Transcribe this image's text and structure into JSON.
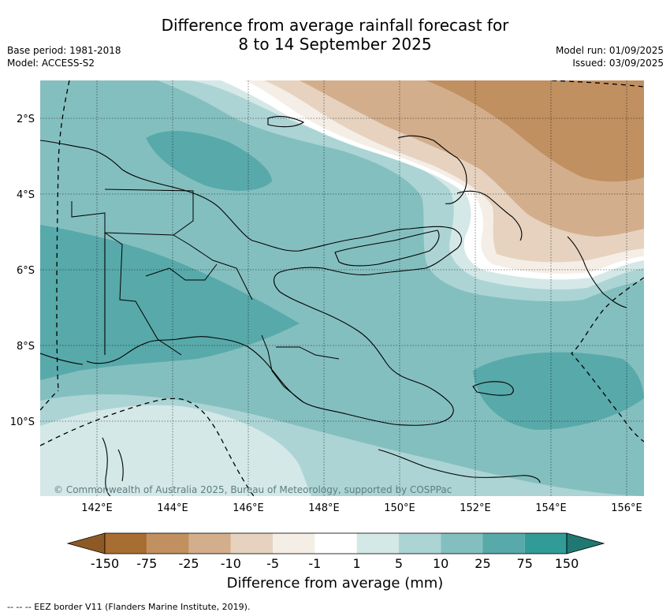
{
  "title_line1": "Difference from average rainfall forecast for",
  "title_line2": "8 to 14 September 2025",
  "base_period": "Base period: 1981-2018",
  "model": "Model: ACCESS-S2",
  "model_run": "Model run: 01/09/2025",
  "issued": "Issued: 03/09/2025",
  "latitude_labels": [
    "2°S",
    "4°S",
    "6°S",
    "8°S",
    "10°S"
  ],
  "longitude_labels": [
    "142°E",
    "144°E",
    "146°E",
    "148°E",
    "150°E",
    "152°E",
    "154°E",
    "156°E"
  ],
  "colorbar": {
    "title": "Difference from average (mm)",
    "tick_labels": [
      "-150",
      "-75",
      "-25",
      "-10",
      "-5",
      "-1",
      "1",
      "5",
      "10",
      "25",
      "75",
      "150"
    ],
    "colors": [
      "#a86d32",
      "#c09060",
      "#d3ae8c",
      "#e6d2bf",
      "#f4eee6",
      "#ffffff",
      "#d4e8e7",
      "#acd4d4",
      "#84bfbf",
      "#58a9aa",
      "#309b97",
      "#1f7872"
    ]
  },
  "copyright": "© Commonwealth of Australia 2025, Bureau of Meteorology, supported by COSPPac",
  "footer": "--  --  -- EEZ border V11 (Flanders Marine Institute, 2019)."
}
